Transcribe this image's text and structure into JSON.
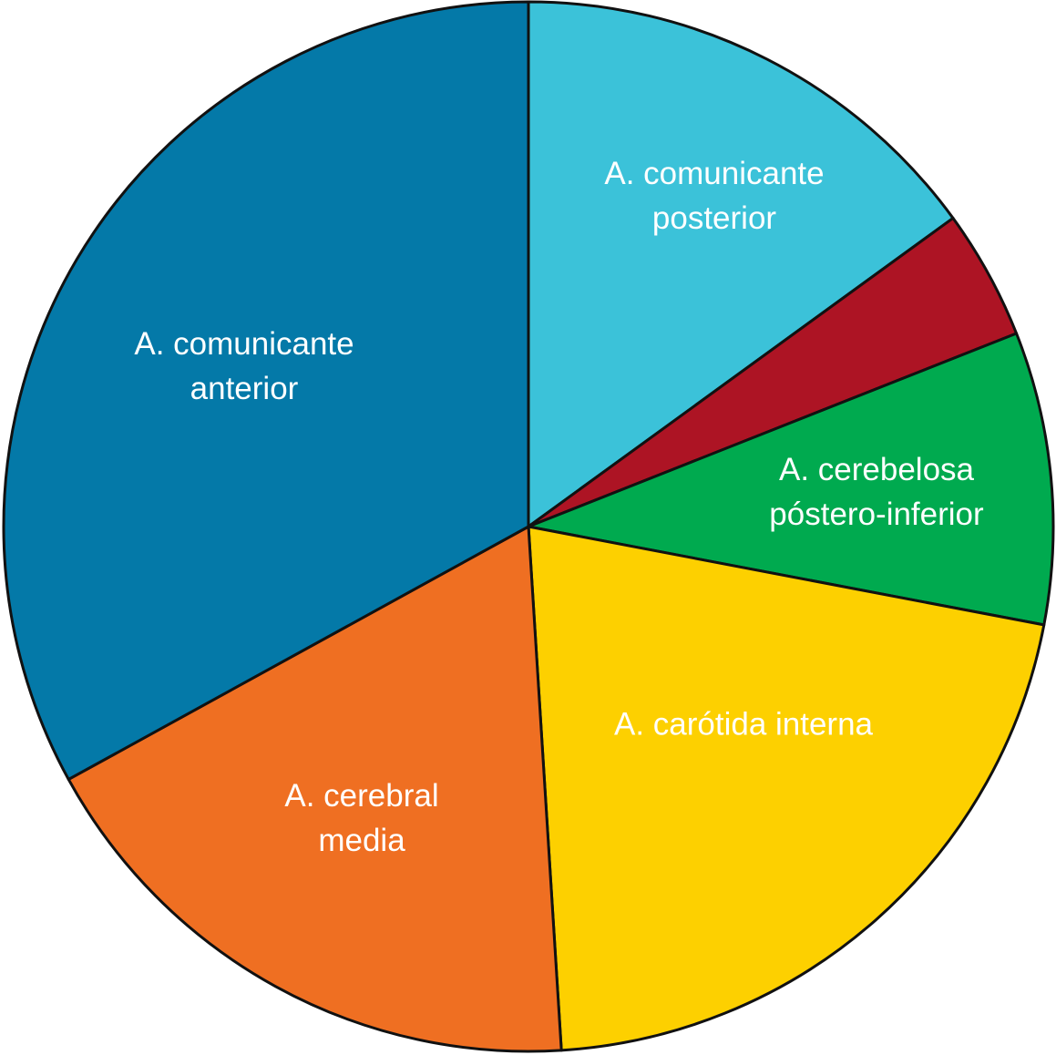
{
  "chart_data": {
    "type": "pie",
    "categories": [
      "A. comunicante posterior",
      null,
      "A. cerebelosa póstero-inferior",
      "A. carótida interna",
      "A. cerebral media",
      "A. comunicante anterior"
    ],
    "values": [
      15,
      4,
      9,
      21,
      18,
      33
    ],
    "colors": [
      "#3bc2d9",
      "#ad1424",
      "#00aa4f",
      "#fdd000",
      "#ef6f22",
      "#0479a8"
    ]
  }
}
